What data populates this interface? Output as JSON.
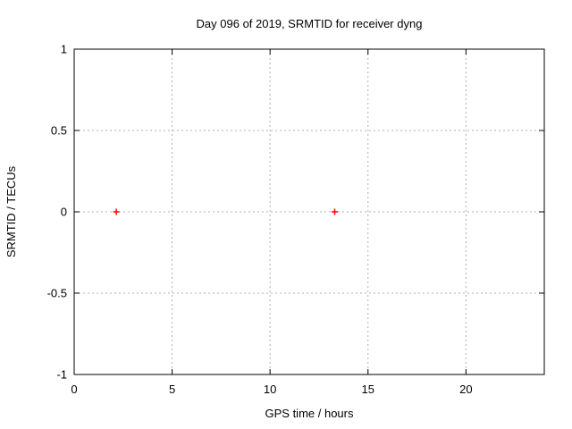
{
  "chart_data": {
    "type": "scatter",
    "title": "Day 096 of 2019, SRMTID for receiver dyng",
    "xlabel": "GPS time / hours",
    "ylabel": "SRMTID / TECUs",
    "xlim": [
      0,
      24
    ],
    "ylim": [
      -1,
      1
    ],
    "xticks": [
      0,
      5,
      10,
      15,
      20
    ],
    "yticks": [
      -1,
      -0.5,
      0,
      0.5,
      1
    ],
    "grid": true,
    "legend": "none",
    "marker": "plus",
    "colors": {
      "marker": "#ff0000",
      "grid": "#b0b0b0",
      "frame": "#000000",
      "background": "#ffffff"
    },
    "series": [
      {
        "name": "SRMTID",
        "points": [
          [
            2.15,
            0.0
          ],
          [
            13.3,
            0.0
          ]
        ]
      }
    ]
  }
}
